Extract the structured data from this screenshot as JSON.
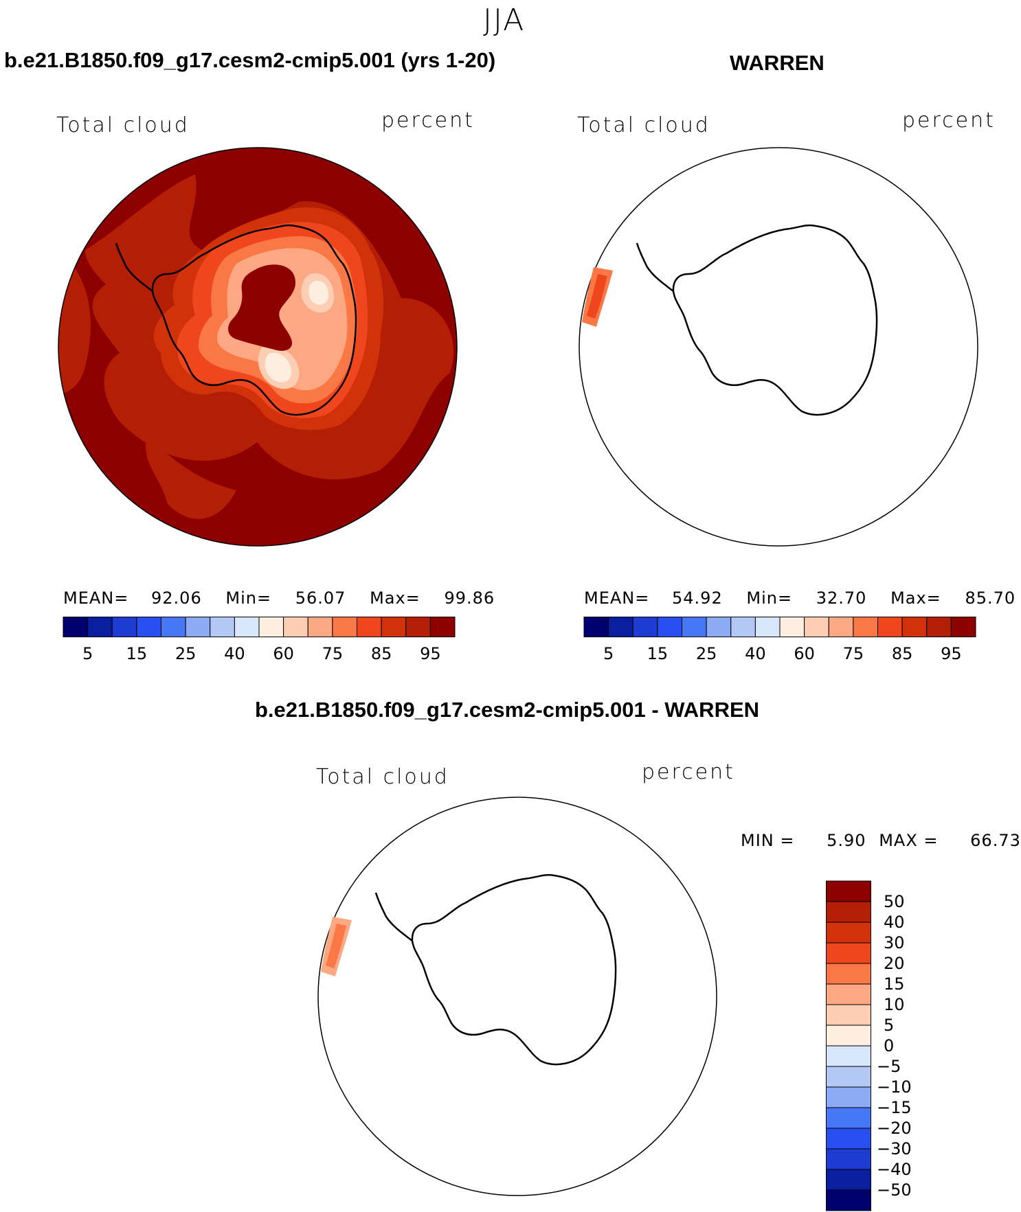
{
  "season": "JJA",
  "panels": [
    {
      "title": "b.e21.B1850.f09_g17.cesm2-cmip5.001 (yrs 1-20)",
      "variable": "Total cloud",
      "units": "percent",
      "stats": {
        "mean_label": "MEAN=",
        "mean": "92.06",
        "min_label": "Min=",
        "min": "56.07",
        "max_label": "Max=",
        "max": "99.86"
      }
    },
    {
      "title": "WARREN",
      "variable": "Total cloud",
      "units": "percent",
      "stats": {
        "mean_label": "MEAN=",
        "mean": "54.92",
        "min_label": "Min=",
        "min": "32.70",
        "max_label": "Max=",
        "max": "85.70"
      }
    },
    {
      "title": "b.e21.B1850.f09_g17.cesm2-cmip5.001 - WARREN",
      "variable": "Total cloud",
      "units": "percent",
      "stats": {
        "min_label": "MIN =",
        "min": "5.90",
        "max_label": "MAX =",
        "max": "66.73"
      }
    }
  ],
  "colorbar_abs": {
    "colors": [
      "#00006e",
      "#0a1ea0",
      "#1e3cd2",
      "#2850f0",
      "#4678f5",
      "#8caaf5",
      "#b4c8f5",
      "#d7e6fa",
      "#fdeee0",
      "#fdcdb4",
      "#fca882",
      "#fa7846",
      "#f0461e",
      "#d2320a",
      "#b41e05",
      "#8c0000"
    ],
    "tick_labels": [
      "5",
      "15",
      "25",
      "40",
      "60",
      "75",
      "85",
      "95"
    ]
  },
  "colorbar_diff": {
    "colors": [
      "#00006e",
      "#0a1ea0",
      "#1e3cd2",
      "#2850f0",
      "#4678f5",
      "#8caaf5",
      "#b4c8f5",
      "#d7e6fa",
      "#fdeee0",
      "#fdcdb4",
      "#fca882",
      "#fa7846",
      "#f0461e",
      "#d2320a",
      "#b41e05",
      "#8c0000"
    ],
    "tick_labels": [
      "50",
      "40",
      "30",
      "20",
      "15",
      "10",
      "5",
      "0",
      "−5",
      "−10",
      "−15",
      "−20",
      "−30",
      "−40",
      "−50"
    ]
  },
  "map_colors": {
    "dark": "#8c0000",
    "deep": "#b41e05",
    "strong": "#d2320a",
    "orange": "#f0461e",
    "medium": "#fa7846",
    "light": "#fca882",
    "pale": "#fdcdb4",
    "palest": "#fdeee0",
    "coast": "#000000"
  },
  "chart_data": {
    "type": "heatmap",
    "title": "JJA",
    "projection": "south polar stereographic",
    "panels": [
      {
        "name": "b.e21.B1850.f09_g17.cesm2-cmip5.001 (yrs 1-20)",
        "variable": "Total cloud",
        "units": "percent",
        "mean": 92.06,
        "min": 56.07,
        "max": 99.86,
        "levels": [
          5,
          10,
          15,
          20,
          25,
          30,
          40,
          50,
          60,
          70,
          75,
          80,
          85,
          90,
          95
        ]
      },
      {
        "name": "WARREN",
        "variable": "Total cloud",
        "units": "percent",
        "mean": 54.92,
        "min": 32.7,
        "max": 85.7,
        "levels": [
          5,
          10,
          15,
          20,
          25,
          30,
          40,
          50,
          60,
          70,
          75,
          80,
          85,
          90,
          95
        ]
      },
      {
        "name": "b.e21.B1850.f09_g17.cesm2-cmip5.001 - WARREN",
        "variable": "Total cloud",
        "units": "percent",
        "min": 5.9,
        "max": 66.73,
        "levels": [
          -50,
          -40,
          -30,
          -20,
          -15,
          -10,
          -5,
          0,
          5,
          10,
          15,
          20,
          30,
          40,
          50
        ]
      }
    ]
  }
}
